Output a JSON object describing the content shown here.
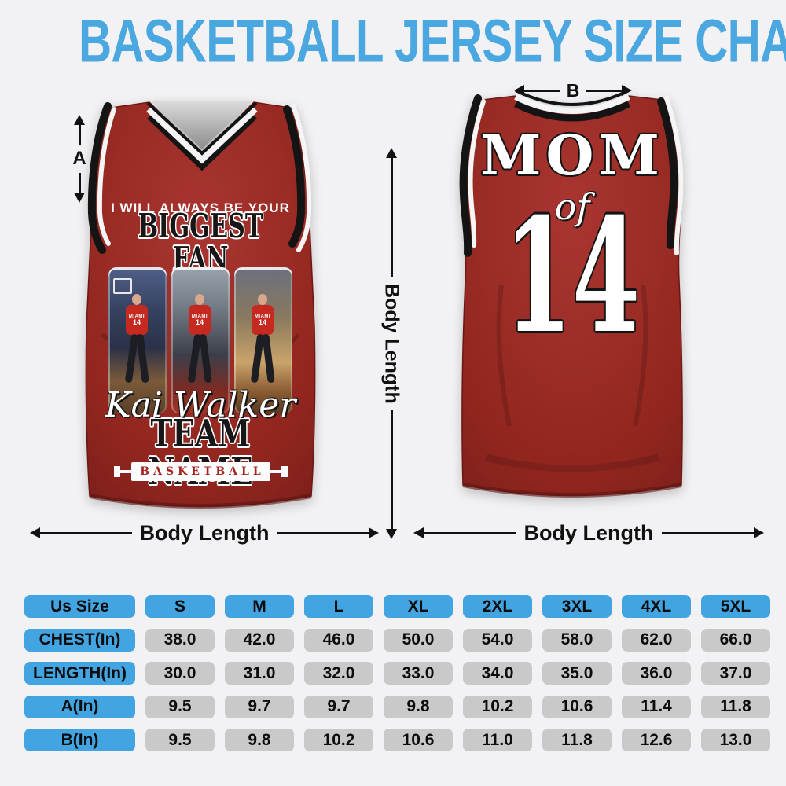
{
  "title": "BASKETBALL JERSEY SIZE CHART",
  "front_jersey": {
    "tagline_line1": "I WILL ALWAYS BE YOUR",
    "tagline_line2": "BIGGEST FAN",
    "photos": [
      {
        "team": "MIAMI",
        "number": "14"
      },
      {
        "team": "MIAMI",
        "number": "14"
      },
      {
        "team": "MIAMI",
        "number": "14"
      }
    ],
    "player_name": "Kai Walker",
    "team_name": "TEAM NAME",
    "banner": "BASKETBALL"
  },
  "back_jersey": {
    "title": "MOM",
    "connector": "of",
    "number": "14"
  },
  "labels": {
    "a": "A",
    "b": "B",
    "middle_vertical": "Body Length",
    "front_width": "Body Length",
    "back_width": "Body Length"
  },
  "colors": {
    "title_blue": "#4aa7e0",
    "table_header_blue": "#42a4e1",
    "table_cell_gray": "#c9c9c9",
    "jersey_red": "#9c2a25",
    "trim_black": "#141414",
    "trim_white": "#f5f5f5",
    "background": "#f2f2f4"
  },
  "chart_data": {
    "type": "table",
    "title": "BASKETBALL JERSEY SIZE CHART",
    "columns": [
      "Us Size",
      "S",
      "M",
      "L",
      "XL",
      "2XL",
      "3XL",
      "4XL",
      "5XL"
    ],
    "rows": [
      {
        "label": "CHEST(In)",
        "values": [
          "38.0",
          "42.0",
          "46.0",
          "50.0",
          "54.0",
          "58.0",
          "62.0",
          "66.0"
        ]
      },
      {
        "label": "LENGTH(In)",
        "values": [
          "30.0",
          "31.0",
          "32.0",
          "33.0",
          "34.0",
          "35.0",
          "36.0",
          "37.0"
        ]
      },
      {
        "label": "A(In)",
        "values": [
          "9.5",
          "9.7",
          "9.7",
          "9.8",
          "10.2",
          "10.6",
          "11.4",
          "11.8"
        ]
      },
      {
        "label": "B(In)",
        "values": [
          "9.5",
          "9.8",
          "10.2",
          "10.6",
          "11.0",
          "11.8",
          "12.6",
          "13.0"
        ]
      }
    ]
  }
}
